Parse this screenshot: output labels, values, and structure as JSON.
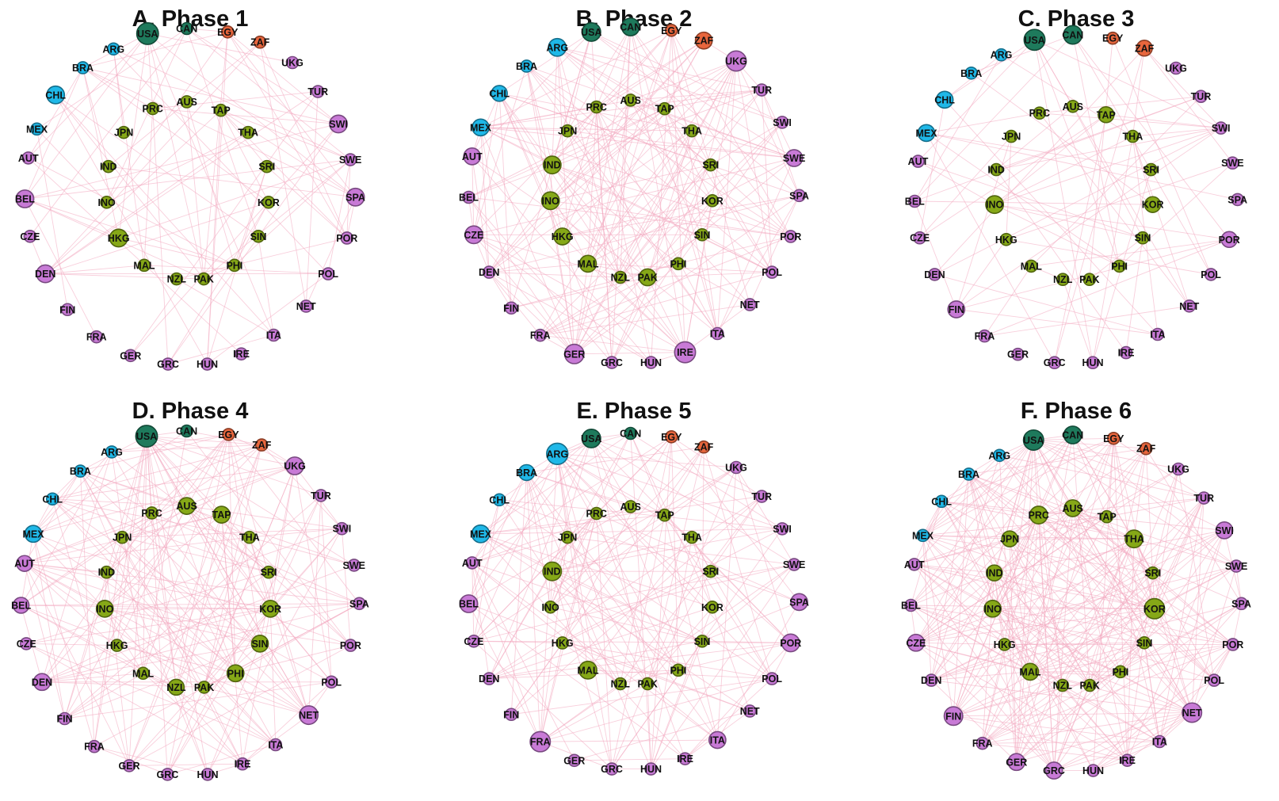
{
  "region_colors": {
    "north_america": "#1e7a5c",
    "latin_america": "#1fb8e8",
    "africa": "#e8663d",
    "europe": "#c87ad6",
    "asia_pacific": "#86a817"
  },
  "nodes": [
    {
      "id": "USA",
      "region": "north_america"
    },
    {
      "id": "CAN",
      "region": "north_america"
    },
    {
      "id": "EGY",
      "region": "africa"
    },
    {
      "id": "ZAF",
      "region": "africa"
    },
    {
      "id": "ARG",
      "region": "latin_america"
    },
    {
      "id": "BRA",
      "region": "latin_america"
    },
    {
      "id": "CHL",
      "region": "latin_america"
    },
    {
      "id": "MEX",
      "region": "latin_america"
    },
    {
      "id": "UKG",
      "region": "europe"
    },
    {
      "id": "TUR",
      "region": "europe"
    },
    {
      "id": "SWI",
      "region": "europe"
    },
    {
      "id": "SWE",
      "region": "europe"
    },
    {
      "id": "SPA",
      "region": "europe"
    },
    {
      "id": "POR",
      "region": "europe"
    },
    {
      "id": "POL",
      "region": "europe"
    },
    {
      "id": "NET",
      "region": "europe"
    },
    {
      "id": "ITA",
      "region": "europe"
    },
    {
      "id": "IRE",
      "region": "europe"
    },
    {
      "id": "HUN",
      "region": "europe"
    },
    {
      "id": "GRC",
      "region": "europe"
    },
    {
      "id": "GER",
      "region": "europe"
    },
    {
      "id": "FRA",
      "region": "europe"
    },
    {
      "id": "FIN",
      "region": "europe"
    },
    {
      "id": "DEN",
      "region": "europe"
    },
    {
      "id": "CZE",
      "region": "europe"
    },
    {
      "id": "BEL",
      "region": "europe"
    },
    {
      "id": "AUT",
      "region": "europe"
    },
    {
      "id": "PRC",
      "region": "asia_pacific"
    },
    {
      "id": "AUS",
      "region": "asia_pacific"
    },
    {
      "id": "TAP",
      "region": "asia_pacific"
    },
    {
      "id": "JPN",
      "region": "asia_pacific"
    },
    {
      "id": "THA",
      "region": "asia_pacific"
    },
    {
      "id": "IND",
      "region": "asia_pacific"
    },
    {
      "id": "SRI",
      "region": "asia_pacific"
    },
    {
      "id": "INO",
      "region": "asia_pacific"
    },
    {
      "id": "KOR",
      "region": "asia_pacific"
    },
    {
      "id": "HKG",
      "region": "asia_pacific"
    },
    {
      "id": "SIN",
      "region": "asia_pacific"
    },
    {
      "id": "MAL",
      "region": "asia_pacific"
    },
    {
      "id": "PHI",
      "region": "asia_pacific"
    },
    {
      "id": "NZL",
      "region": "asia_pacific"
    },
    {
      "id": "PAK",
      "region": "asia_pacific"
    }
  ],
  "panels": [
    {
      "title": "A.  Phase 1",
      "edge_density": 0.16,
      "node_size": {
        "USA": 3,
        "SWI": 2,
        "CHL": 2,
        "HKG": 2,
        "DEN": 2,
        "SPA": 2,
        "BEL": 2
      }
    },
    {
      "title": "B.  Phase 2",
      "edge_density": 0.26,
      "node_size": {
        "USA": 2.2,
        "CAN": 2,
        "ARG": 2,
        "UKG": 2.6,
        "ZAF": 1.8,
        "MEX": 1.8,
        "INO": 2,
        "IND": 2,
        "HKG": 1.8,
        "MAL": 1.8,
        "PAK": 1.8,
        "CZE": 2,
        "GER": 2.4,
        "IRE": 2.8,
        "SWE": 1.8,
        "AUT": 1.8,
        "CHL": 1.6
      }
    },
    {
      "title": "C.  Phase 3",
      "edge_density": 0.14,
      "node_size": {
        "USA": 2.8,
        "CAN": 2.2,
        "INO": 2,
        "CHL": 1.8,
        "MEX": 1.8,
        "FIN": 1.8,
        "POR": 1.6,
        "KOR": 1.6,
        "TAP": 1.6,
        "ZAF": 1.6
      }
    },
    {
      "title": "D.  Phase 4",
      "edge_density": 0.3,
      "node_size": {
        "USA": 3,
        "UKG": 2,
        "NET": 2.2,
        "TAP": 1.8,
        "AUS": 1.8,
        "KOR": 1.8,
        "INO": 1.8,
        "PHI": 1.8,
        "SIN": 1.8,
        "MEX": 1.8,
        "DEN": 1.8,
        "NZL": 1.6,
        "BEL": 1.6,
        "AUT": 1.6
      }
    },
    {
      "title": "E.  Phase 5",
      "edge_density": 0.3,
      "node_size": {
        "USA": 2.2,
        "ARG": 2.9,
        "FRA": 2.6,
        "IND": 2.2,
        "MAL": 2,
        "POR": 2,
        "MEX": 2,
        "BEL": 2,
        "ITA": 1.8,
        "SPA": 1.8,
        "BRA": 1.6
      }
    },
    {
      "title": "F.  Phase 6",
      "edge_density": 0.42,
      "node_size": {
        "USA": 2.6,
        "CAN": 2,
        "KOR": 2.6,
        "PRC": 2,
        "AUS": 1.8,
        "THA": 2,
        "NET": 2.4,
        "FIN": 2.2,
        "GER": 1.8,
        "GRC": 1.8,
        "MAL": 1.8,
        "INO": 1.8,
        "SWI": 1.8,
        "CZE": 1.8,
        "IND": 1.6,
        "JPN": 1.6
      }
    }
  ]
}
